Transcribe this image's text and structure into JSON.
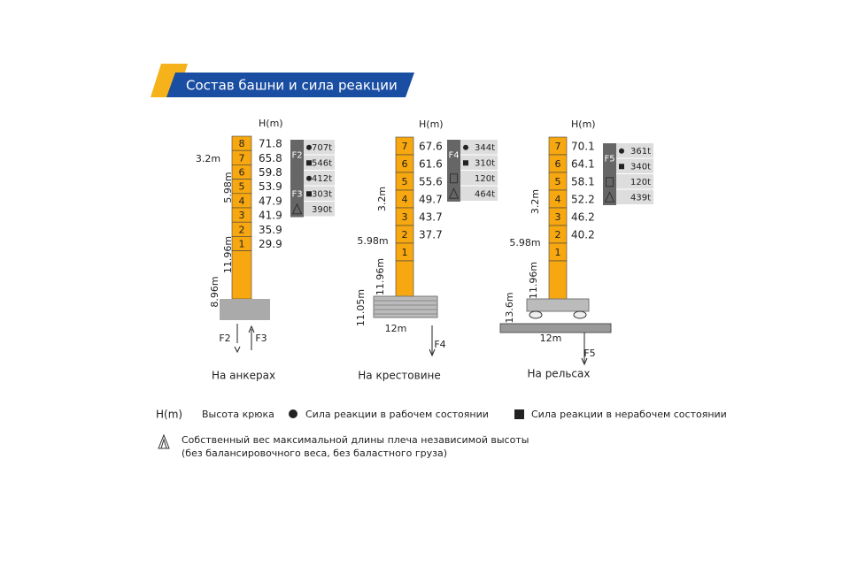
{
  "title": "Состав башни и сила реакции",
  "towers": [
    {
      "height_unit": "H(m)",
      "sections": [
        "8",
        "7",
        "6",
        "5",
        "4",
        "3",
        "2",
        "1"
      ],
      "heights": [
        "71.8",
        "65.8",
        "59.8",
        "53.9",
        "47.9",
        "41.9",
        "35.9",
        "29.9"
      ],
      "dims": [
        "3.2m",
        "5.98m",
        "11.96m",
        "8.96m"
      ],
      "forces": [
        "F2",
        "F3"
      ],
      "table": [
        {
          "label": "F2",
          "values": [
            "707t",
            "546t"
          ]
        },
        {
          "label": "F3",
          "values": [
            "412t",
            "303t",
            "390t"
          ]
        }
      ],
      "caption": "На анкерах"
    },
    {
      "height_unit": "H(m)",
      "sections": [
        "7",
        "6",
        "5",
        "4",
        "3",
        "2",
        "1"
      ],
      "heights": [
        "67.6",
        "61.6",
        "55.6",
        "49.7",
        "43.7",
        "37.7"
      ],
      "dims": [
        "5.98m",
        "3.2m",
        "11.96m",
        "11.05m",
        "12m"
      ],
      "forces": [
        "F4"
      ],
      "table": [
        {
          "label": "F4",
          "values": [
            "344t",
            "310t"
          ]
        },
        {
          "values": [
            "120t",
            "464t"
          ]
        }
      ],
      "caption": "На крестовине"
    },
    {
      "height_unit": "H(m)",
      "sections": [
        "7",
        "6",
        "5",
        "4",
        "3",
        "2",
        "1"
      ],
      "heights": [
        "70.1",
        "64.1",
        "58.1",
        "52.2",
        "46.2",
        "40.2"
      ],
      "dims": [
        "5.98m",
        "3.2m",
        "11.96m",
        "13.6m",
        "12m"
      ],
      "forces": [
        "F5"
      ],
      "table": [
        {
          "label": "F5",
          "values": [
            "361t",
            "340t"
          ]
        },
        {
          "values": [
            "120t",
            "439t"
          ]
        }
      ],
      "caption": "На рельсах"
    }
  ],
  "legend": {
    "height_unit": "H(m)",
    "height_text": "Высота крюка",
    "working": "Сила реакции в рабочем состоянии",
    "idle": "Сила реакции в нерабочем состоянии",
    "weight_line1": "Собственный вес максимальной длины плеча независимой высоты",
    "weight_line2": "(без балансировочного веса, без баластного груза)"
  }
}
